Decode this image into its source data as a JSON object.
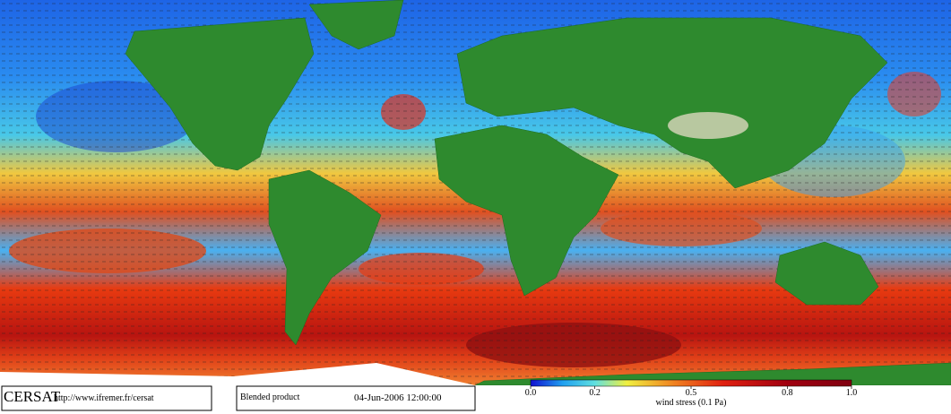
{
  "footer": {
    "logo": "CERSAT",
    "url": "http://www.ifremer.fr/cersat",
    "product": "Blended product",
    "date": "04-Jun-2006 12:00:00"
  },
  "colorbar": {
    "lim": [
      0,
      1
    ],
    "ticks": [
      {
        "value": 0,
        "label": "0.0"
      },
      {
        "value": 0.2,
        "label": "0.2"
      },
      {
        "value": 0.5,
        "label": "0.5"
      },
      {
        "value": 0.8,
        "label": "0.8"
      },
      {
        "value": 1,
        "label": "1.0"
      }
    ],
    "label": "wind stress (0.1 Pa)"
  }
}
